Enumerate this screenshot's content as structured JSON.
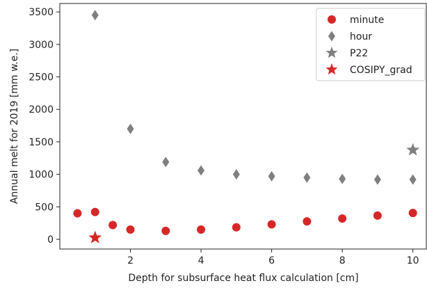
{
  "chart_data": {
    "type": "scatter",
    "title": "",
    "xlabel": "Depth for subsurface heat flux calculation [cm]",
    "ylabel": "Annual melt for 2019 [mm w.e.]",
    "xlim": [
      0.0,
      10.4
    ],
    "ylim": [
      -150,
      3630
    ],
    "xticks": [
      2,
      4,
      6,
      8,
      10
    ],
    "yticks": [
      0,
      500,
      1000,
      1500,
      2000,
      2500,
      3000,
      3500
    ],
    "grid": false,
    "legend_position": "top-right",
    "series": [
      {
        "name": "minute",
        "marker": "circle",
        "color": "#d62728",
        "points": [
          [
            0.5,
            400
          ],
          [
            1,
            420
          ],
          [
            1.5,
            220
          ],
          [
            2,
            150
          ],
          [
            3,
            130
          ],
          [
            4,
            150
          ],
          [
            5,
            185
          ],
          [
            6,
            230
          ],
          [
            7,
            275
          ],
          [
            8,
            320
          ],
          [
            9,
            365
          ],
          [
            10,
            405
          ]
        ]
      },
      {
        "name": "hour",
        "marker": "diamond",
        "color": "#7f7f7f",
        "points": [
          [
            1,
            3450
          ],
          [
            2,
            1700
          ],
          [
            3,
            1190
          ],
          [
            4,
            1060
          ],
          [
            5,
            1000
          ],
          [
            6,
            970
          ],
          [
            7,
            950
          ],
          [
            8,
            930
          ],
          [
            9,
            920
          ],
          [
            10,
            920
          ]
        ]
      },
      {
        "name": "P22",
        "marker": "star",
        "color": "#7f7f7f",
        "points": [
          [
            10,
            1375
          ]
        ]
      },
      {
        "name": "COSIPY_grad",
        "marker": "star",
        "color": "#d62728",
        "points": [
          [
            1,
            25
          ]
        ]
      }
    ]
  }
}
